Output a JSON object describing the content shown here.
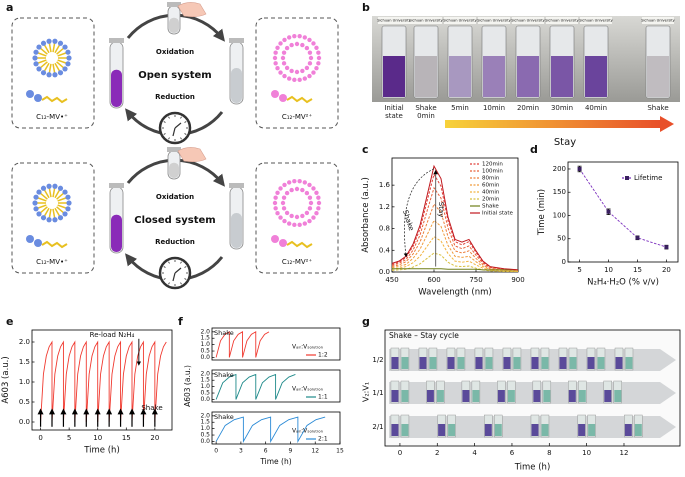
{
  "panel_labels": [
    "a",
    "b",
    "c",
    "d",
    "e",
    "f",
    "g"
  ],
  "diagram_a": {
    "systems": [
      {
        "oxidation": "Oxidation",
        "name": "Open system",
        "reduction": "Reduction",
        "left_label": "C₁₂-MV•⁺",
        "right_label": "C₁₂-MV²⁺"
      },
      {
        "oxidation": "Oxidation",
        "name": "Closed system",
        "reduction": "Reduction",
        "left_label": "C₁₂-MV•⁺",
        "right_label": "C₁₂-MV²⁺"
      }
    ]
  },
  "photo_b": {
    "vial_label": "Sichuan University",
    "vials": [
      "Initial state",
      "Shake 0min",
      "5min",
      "10min",
      "20min",
      "30min",
      "40min",
      "Shake"
    ],
    "arrow_label": "Stay"
  },
  "photo_g": {
    "title": "Shake – Stay cycle",
    "xlabel": "Time (h)",
    "ylabel": "V₂:V₁",
    "rows": [
      "1/2",
      "1/1",
      "2/1"
    ],
    "xticks": [
      0,
      2,
      4,
      6,
      8,
      10,
      12
    ],
    "xlim": [
      -0.8,
      15
    ]
  },
  "chart_data": [
    {
      "type": "line",
      "xlabel": "Wavelength (nm)",
      "ylabel": "Absorbance (a.u.)",
      "x": [
        450,
        475,
        500,
        525,
        550,
        575,
        600,
        625,
        650,
        675,
        700,
        725,
        750,
        775,
        800,
        850,
        900
      ],
      "series": [
        {
          "name": "120min",
          "color": "#e0403a",
          "style": "dashed",
          "values": [
            0.14,
            0.18,
            0.27,
            0.47,
            0.79,
            1.3,
            1.8,
            1.58,
            0.94,
            0.56,
            0.5,
            0.56,
            0.36,
            0.18,
            0.09,
            0.05,
            0.04
          ]
        },
        {
          "name": "100min",
          "color": "#e8603a",
          "style": "dashed",
          "values": [
            0.12,
            0.16,
            0.23,
            0.4,
            0.68,
            1.12,
            1.55,
            1.36,
            0.81,
            0.48,
            0.43,
            0.48,
            0.31,
            0.16,
            0.08,
            0.05,
            0.03
          ]
        },
        {
          "name": "80min",
          "color": "#ec7e3a",
          "style": "dashed",
          "values": [
            0.1,
            0.13,
            0.19,
            0.33,
            0.55,
            0.9,
            1.25,
            1.1,
            0.65,
            0.39,
            0.35,
            0.39,
            0.25,
            0.13,
            0.06,
            0.04,
            0.03
          ]
        },
        {
          "name": "60min",
          "color": "#f09c3c",
          "style": "dashed",
          "values": [
            0.08,
            0.1,
            0.14,
            0.25,
            0.42,
            0.68,
            0.95,
            0.84,
            0.49,
            0.29,
            0.27,
            0.29,
            0.19,
            0.1,
            0.05,
            0.03,
            0.02
          ]
        },
        {
          "name": "40min",
          "color": "#f2b440",
          "style": "dashed",
          "values": [
            0.05,
            0.07,
            0.1,
            0.17,
            0.29,
            0.47,
            0.65,
            0.57,
            0.34,
            0.2,
            0.18,
            0.2,
            0.13,
            0.07,
            0.03,
            0.02,
            0.01
          ]
        },
        {
          "name": "20min",
          "color": "#d8c040",
          "style": "dashed",
          "values": [
            0.03,
            0.04,
            0.05,
            0.09,
            0.15,
            0.25,
            0.35,
            0.31,
            0.18,
            0.11,
            0.1,
            0.11,
            0.07,
            0.04,
            0.02,
            0.01,
            0.01
          ]
        },
        {
          "name": "Shake",
          "color": "#6f7f18",
          "style": "solid",
          "values": [
            0.06,
            0.06,
            0.06,
            0.06,
            0.06,
            0.06,
            0.06,
            0.06,
            0.05,
            0.05,
            0.05,
            0.05,
            0.05,
            0.04,
            0.04,
            0.04,
            0.04
          ]
        },
        {
          "name": "Initial state",
          "color": "#c0181e",
          "style": "solid",
          "values": [
            0.16,
            0.2,
            0.29,
            0.51,
            0.86,
            1.4,
            1.95,
            1.72,
            1.01,
            0.6,
            0.55,
            0.6,
            0.39,
            0.2,
            0.1,
            0.06,
            0.04
          ]
        }
      ],
      "xlim": [
        450,
        900
      ],
      "xticks": [
        450,
        600,
        750,
        900
      ],
      "ylim": [
        0,
        2.1
      ],
      "yticks": [
        {
          "value": 0,
          "label": "0.0"
        },
        0.4,
        0.8,
        1.2,
        1.6
      ],
      "legend": "upper right",
      "annotations": [
        "Shake",
        "Stay"
      ]
    },
    {
      "type": "line",
      "xlabel": "N₂H₄·H₂O (% v/v)",
      "ylabel": "Time (min)",
      "x": [
        5,
        10,
        15,
        20
      ],
      "series": [
        {
          "name": "Lifetime",
          "color": "#7b2fbe",
          "style": "dashed",
          "marker": "square",
          "values": [
            200,
            108,
            52,
            32
          ],
          "errors": [
            6,
            6,
            4,
            4
          ]
        }
      ],
      "xlim": [
        3,
        22
      ],
      "xticks": [
        5,
        10,
        15,
        20
      ],
      "ylim": [
        0,
        215
      ],
      "yticks": [
        0,
        50,
        100,
        150,
        200
      ],
      "legend": "upper right"
    },
    {
      "type": "line",
      "xlabel": "Time (h)",
      "ylabel": "A603 (a.u.)",
      "color": "#f03a30",
      "x": [
        0,
        0.5,
        1,
        1.5,
        2,
        2,
        2.5,
        3,
        3.5,
        4,
        4,
        4.5,
        5,
        5.5,
        6,
        6,
        6.5,
        7,
        7.5,
        8,
        8,
        8.5,
        9,
        9.5,
        10,
        10,
        10.5,
        11,
        11.5,
        12,
        12,
        12.5,
        13,
        13.5,
        14,
        14,
        14.5,
        15,
        15.5,
        16,
        16,
        16.5,
        17,
        17.5,
        18,
        18,
        18.5,
        19,
        19.5,
        20,
        20,
        20.5,
        21,
        21.5,
        22
      ],
      "values": [
        0,
        1.2,
        1.65,
        1.88,
        2.0,
        0,
        1.2,
        1.65,
        1.88,
        2.0,
        0,
        1.2,
        1.65,
        1.88,
        2.0,
        0,
        1.2,
        1.65,
        1.88,
        2.0,
        0,
        1.2,
        1.65,
        1.88,
        2.0,
        0,
        1.2,
        1.65,
        1.88,
        2.0,
        0,
        1.2,
        1.65,
        1.88,
        2.0,
        0,
        1.2,
        1.65,
        1.88,
        2.0,
        0,
        1.2,
        1.65,
        1.88,
        2.0,
        0,
        1.2,
        1.65,
        1.88,
        2.0,
        0,
        1.2,
        1.65,
        1.88,
        2.0
      ],
      "xlim": [
        -1.5,
        23
      ],
      "xticks": [
        0,
        5,
        10,
        15,
        20
      ],
      "ylim": [
        -0.2,
        2.3
      ],
      "yticks": [
        {
          "value": 0,
          "label": "0.0"
        },
        0.5,
        {
          "value": 1,
          "label": "1.0"
        },
        1.5,
        {
          "value": 2,
          "label": "2.0"
        }
      ],
      "annotations": [
        "Re-load N₂H₄",
        "Shake"
      ]
    },
    {
      "type": "line",
      "x": [
        0,
        0.53,
        1.07,
        1.6,
        1.6,
        2.13,
        2.67,
        3.2,
        3.2,
        3.73,
        4.27,
        4.8,
        4.8,
        5.33,
        5.87,
        6.4
      ],
      "series": [
        {
          "name": "1:2",
          "color": "#f03a30",
          "values": [
            0,
            1.3,
            1.8,
            2.0,
            0,
            1.3,
            1.8,
            2.0,
            0,
            1.3,
            1.8,
            2.0,
            0,
            1.3,
            1.8,
            2.0
          ]
        }
      ],
      "legend_title": "Vₐᵢᵣ:Vₛₒₗᵤₜᵢₒₙ",
      "legend": "lower right",
      "xlim": [
        -0.5,
        15
      ],
      "ylim": [
        -0.2,
        2.3
      ],
      "yticks": [
        {
          "value": 0,
          "label": "0.0"
        },
        0.5,
        {
          "value": 1,
          "label": "1.0"
        },
        1.5,
        {
          "value": 2,
          "label": "2.0"
        }
      ],
      "annotations": [
        "Shake"
      ]
    },
    {
      "type": "line",
      "ylabel": "A603 (a.u.)",
      "x": [
        0,
        0.8,
        1.6,
        2.4,
        2.4,
        3.2,
        4.0,
        4.8,
        4.8,
        5.6,
        6.4,
        7.2,
        7.2,
        8.0,
        8.8,
        9.6
      ],
      "series": [
        {
          "name": "1:1",
          "color": "#1f8a8a",
          "values": [
            0,
            1.3,
            1.75,
            1.95,
            0,
            1.3,
            1.75,
            1.95,
            0,
            1.3,
            1.75,
            1.95,
            0,
            1.3,
            1.75,
            1.95
          ]
        }
      ],
      "legend_title": "Vₐᵢᵣ:Vₛₒₗᵤₜᵢₒₙ",
      "legend": "lower right",
      "xlim": [
        -0.5,
        15
      ],
      "ylim": [
        -0.2,
        2.3
      ],
      "yticks": [
        {
          "value": 0,
          "label": "0.0"
        },
        0.5,
        {
          "value": 1,
          "label": "1.0"
        },
        1.5,
        {
          "value": 2,
          "label": "2.0"
        }
      ],
      "annotations": [
        "Shake"
      ]
    },
    {
      "type": "line",
      "xlabel": "Time (h)",
      "x": [
        0,
        1.1,
        2.2,
        3.3,
        3.3,
        4.4,
        5.5,
        6.6,
        6.6,
        7.7,
        8.8,
        9.9,
        9.9,
        11.0,
        12.1,
        13.2
      ],
      "series": [
        {
          "name": "2:1",
          "color": "#2a8ad6",
          "values": [
            0,
            1.25,
            1.7,
            1.9,
            0,
            1.25,
            1.7,
            1.9,
            0,
            1.25,
            1.7,
            1.9,
            0,
            1.25,
            1.7,
            1.9
          ]
        }
      ],
      "legend_title": "Vₐᵢᵣ:Vₛₒₗᵤₜᵢₒₙ",
      "legend": "lower right",
      "xlim": [
        -0.5,
        15
      ],
      "xticks": [
        0,
        3,
        6,
        9,
        12,
        15
      ],
      "ylim": [
        -0.2,
        2.3
      ],
      "yticks": [
        {
          "value": 0,
          "label": "0.0"
        },
        0.5,
        {
          "value": 1,
          "label": "1.0"
        },
        1.5,
        {
          "value": 2,
          "label": "2.0"
        }
      ],
      "annotations": [
        "Shake"
      ]
    }
  ]
}
